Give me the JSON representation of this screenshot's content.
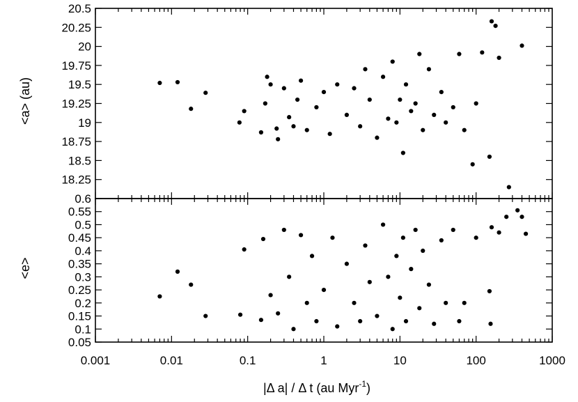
{
  "chart_data": [
    {
      "type": "scatter",
      "title": "",
      "xlabel": "|Δ a| / Δ t (au Myr",
      "xlabel_superscript": "-1",
      "xlabel_suffix": ")",
      "ylabel": "<a> (au)",
      "xscale": "log",
      "xlim": [
        0.001,
        1000
      ],
      "ylim": [
        18.0,
        20.5
      ],
      "grid": false,
      "x_ticks": [
        0.001,
        0.01,
        0.1,
        1,
        10,
        100,
        1000
      ],
      "x_tick_labels": [
        "0.001",
        "0.01",
        "0.1",
        "1",
        "10",
        "100",
        "1000"
      ],
      "y_ticks": [
        18.25,
        18.5,
        18.75,
        19,
        19.25,
        19.5,
        19.75,
        20,
        20.25,
        20.5
      ],
      "y_tick_labels": [
        "18.25",
        "18.5",
        "18.75",
        "19",
        "19.25",
        "19.5",
        "19.75",
        "20",
        "20.25",
        "20.5"
      ],
      "series": [
        {
          "points": [
            [
              0.007,
              19.52
            ],
            [
              0.012,
              19.53
            ],
            [
              0.018,
              19.18
            ],
            [
              0.028,
              19.39
            ],
            [
              0.078,
              19.0
            ],
            [
              0.09,
              19.15
            ],
            [
              0.15,
              18.87
            ],
            [
              0.17,
              19.25
            ],
            [
              0.18,
              19.6
            ],
            [
              0.2,
              19.5
            ],
            [
              0.24,
              18.92
            ],
            [
              0.25,
              18.78
            ],
            [
              0.3,
              19.45
            ],
            [
              0.35,
              19.07
            ],
            [
              0.4,
              18.95
            ],
            [
              0.45,
              19.3
            ],
            [
              0.5,
              19.55
            ],
            [
              0.6,
              18.9
            ],
            [
              0.8,
              19.2
            ],
            [
              1.0,
              19.4
            ],
            [
              1.2,
              18.85
            ],
            [
              1.5,
              19.5
            ],
            [
              2.0,
              19.1
            ],
            [
              2.5,
              19.45
            ],
            [
              3.0,
              18.95
            ],
            [
              3.5,
              19.7
            ],
            [
              4.0,
              19.3
            ],
            [
              5.0,
              18.8
            ],
            [
              6.0,
              19.6
            ],
            [
              7.0,
              19.05
            ],
            [
              8.0,
              19.8
            ],
            [
              9.0,
              19.0
            ],
            [
              10.0,
              19.3
            ],
            [
              11.0,
              18.6
            ],
            [
              12.0,
              19.5
            ],
            [
              14.0,
              19.15
            ],
            [
              16.0,
              19.25
            ],
            [
              18.0,
              19.9
            ],
            [
              20.0,
              18.9
            ],
            [
              24.0,
              19.7
            ],
            [
              28.0,
              19.1
            ],
            [
              35.0,
              19.4
            ],
            [
              40.0,
              19.0
            ],
            [
              50.0,
              19.2
            ],
            [
              60.0,
              19.9
            ],
            [
              70.0,
              18.9
            ],
            [
              90.0,
              18.45
            ],
            [
              100.0,
              19.25
            ],
            [
              120.0,
              19.92
            ],
            [
              150.0,
              18.55
            ],
            [
              160.0,
              20.33
            ],
            [
              180.0,
              20.27
            ],
            [
              200.0,
              19.85
            ],
            [
              270.0,
              18.15
            ],
            [
              400.0,
              20.01
            ]
          ]
        }
      ]
    },
    {
      "type": "scatter",
      "title": "",
      "xlabel": "|Δ a| / Δ t (au Myr",
      "ylabel": "<e>",
      "xscale": "log",
      "xlim": [
        0.001,
        1000
      ],
      "ylim": [
        0.05,
        0.6
      ],
      "grid": false,
      "x_ticks": [
        0.001,
        0.01,
        0.1,
        1,
        10,
        100,
        1000
      ],
      "y_ticks": [
        0.05,
        0.1,
        0.15,
        0.2,
        0.25,
        0.3,
        0.35,
        0.4,
        0.45,
        0.5,
        0.55,
        0.6
      ],
      "y_tick_labels": [
        "0.05",
        "0.1",
        "0.15",
        "0.2",
        "0.25",
        "0.3",
        "0.35",
        "0.4",
        "0.45",
        "0.5",
        "0.55",
        "0.6"
      ],
      "series": [
        {
          "points": [
            [
              0.007,
              0.225
            ],
            [
              0.012,
              0.32
            ],
            [
              0.018,
              0.27
            ],
            [
              0.028,
              0.15
            ],
            [
              0.08,
              0.155
            ],
            [
              0.09,
              0.405
            ],
            [
              0.15,
              0.135
            ],
            [
              0.16,
              0.445
            ],
            [
              0.2,
              0.23
            ],
            [
              0.25,
              0.16
            ],
            [
              0.3,
              0.48
            ],
            [
              0.35,
              0.3
            ],
            [
              0.4,
              0.1
            ],
            [
              0.5,
              0.46
            ],
            [
              0.6,
              0.2
            ],
            [
              0.7,
              0.38
            ],
            [
              0.8,
              0.13
            ],
            [
              1.0,
              0.25
            ],
            [
              1.3,
              0.45
            ],
            [
              1.5,
              0.11
            ],
            [
              2.0,
              0.35
            ],
            [
              2.5,
              0.2
            ],
            [
              3.0,
              0.13
            ],
            [
              3.5,
              0.42
            ],
            [
              4.0,
              0.28
            ],
            [
              5.0,
              0.15
            ],
            [
              6.0,
              0.5
            ],
            [
              7.0,
              0.3
            ],
            [
              8.0,
              0.1
            ],
            [
              9.0,
              0.38
            ],
            [
              10.0,
              0.22
            ],
            [
              11.0,
              0.45
            ],
            [
              12.0,
              0.13
            ],
            [
              14.0,
              0.33
            ],
            [
              16.0,
              0.48
            ],
            [
              18.0,
              0.18
            ],
            [
              20.0,
              0.4
            ],
            [
              24.0,
              0.27
            ],
            [
              28.0,
              0.12
            ],
            [
              35.0,
              0.44
            ],
            [
              40.0,
              0.2
            ],
            [
              50.0,
              0.48
            ],
            [
              60.0,
              0.13
            ],
            [
              70.0,
              0.2
            ],
            [
              100.0,
              0.45
            ],
            [
              150.0,
              0.245
            ],
            [
              155.0,
              0.12
            ],
            [
              160.0,
              0.49
            ],
            [
              200.0,
              0.47
            ],
            [
              250.0,
              0.53
            ],
            [
              350.0,
              0.555
            ],
            [
              400.0,
              0.53
            ],
            [
              450.0,
              0.465
            ]
          ]
        }
      ]
    }
  ]
}
